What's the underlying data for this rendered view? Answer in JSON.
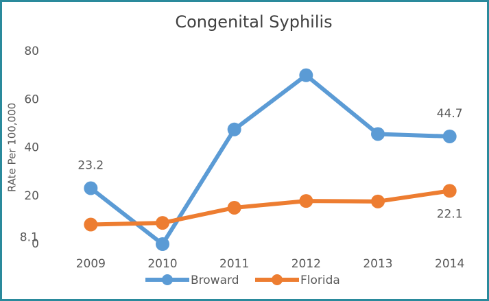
{
  "chart_data": {
    "type": "line",
    "title": "Congenital Syphilis",
    "y_label": "RAte Per 100,000",
    "categories": [
      "2009",
      "2010",
      "2011",
      "2012",
      "2013",
      "2014"
    ],
    "series": [
      {
        "name": "Broward",
        "color": "#5b9bd5",
        "values": [
          23.2,
          0,
          47.6,
          70.1,
          45.7,
          44.7
        ],
        "value_labels": [
          "23.2",
          null,
          null,
          null,
          null,
          "44.7"
        ]
      },
      {
        "name": "Florida",
        "color": "#ed7d31",
        "values": [
          8.1,
          8.8,
          15.1,
          17.9,
          17.7,
          22.1
        ],
        "value_labels": [
          "8.1",
          null,
          null,
          null,
          null,
          "22.1"
        ]
      }
    ],
    "ylim": [
      0,
      80
    ],
    "yticks": [
      0,
      20,
      40,
      60,
      80
    ],
    "grid": false,
    "legend": "bottom"
  }
}
